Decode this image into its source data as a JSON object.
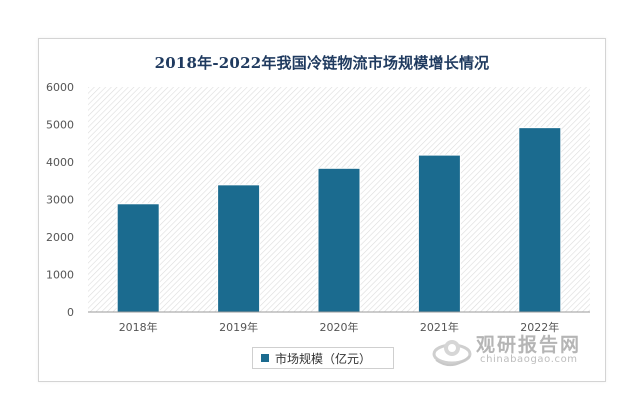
{
  "colors": {
    "bar": "#1b6b8f",
    "title": "#1f3a5f",
    "axis": "#555555"
  },
  "watermark": {
    "name": "观研报告网",
    "url": "chinabaogao.com"
  },
  "chart_data": {
    "type": "bar",
    "title": "2018年-2022年我国冷链物流市场规模增长情况",
    "categories": [
      "2018年",
      "2019年",
      "2020年",
      "2021年",
      "2022年"
    ],
    "series": [
      {
        "name": "市场规模（亿元）",
        "values": [
          2886,
          3391,
          3832,
          4184,
          4916
        ]
      }
    ],
    "yticks": [
      0,
      1000,
      2000,
      3000,
      4000,
      5000,
      6000
    ],
    "ylim": [
      0,
      6000
    ],
    "xlabel": "",
    "ylabel": "",
    "grid": false,
    "background_pattern": "diagonal-hatch",
    "legend_position": "bottom"
  }
}
